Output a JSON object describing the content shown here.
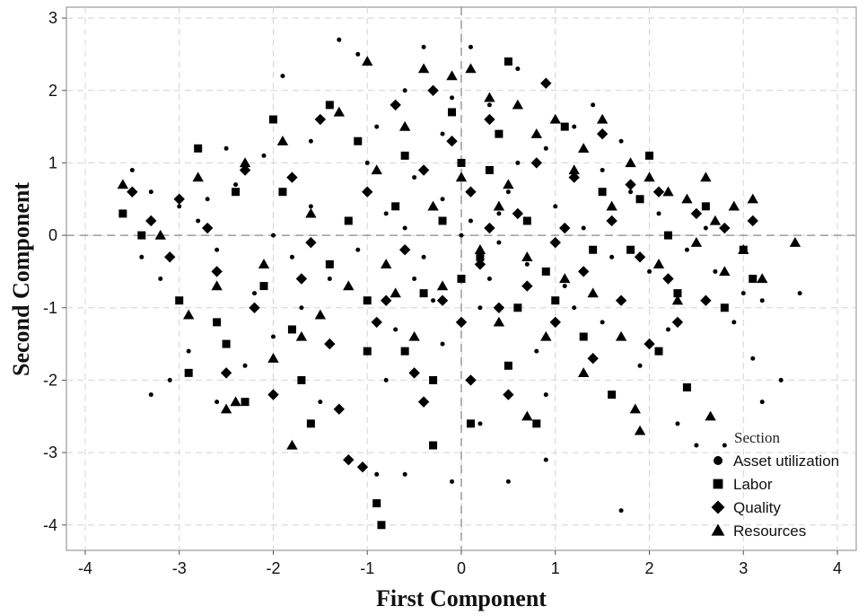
{
  "chart_data": {
    "type": "scatter",
    "title": "",
    "xlabel": "First Component",
    "ylabel": "Second Component",
    "xlim": [
      -4.2,
      4.2
    ],
    "ylim": [
      -4.35,
      3.15
    ],
    "xticks": [
      -4,
      -3,
      -2,
      -1,
      0,
      1,
      2,
      3,
      4
    ],
    "yticks": [
      -4,
      -3,
      -2,
      -1,
      0,
      1,
      2,
      3
    ],
    "grid": true,
    "reference_lines": {
      "x": 0,
      "y": 0
    },
    "legend": {
      "title": "Section",
      "position": "bottom-right",
      "entries": [
        {
          "label": "Asset utilization",
          "marker": "circle"
        },
        {
          "label": "Labor",
          "marker": "square"
        },
        {
          "label": "Quality",
          "marker": "diamond"
        },
        {
          "label": "Resources",
          "marker": "triangle"
        }
      ]
    },
    "series": [
      {
        "name": "Asset utilization",
        "marker": "circle",
        "points": [
          [
            -3.5,
            0.9
          ],
          [
            -3.3,
            0.6
          ],
          [
            -3.0,
            0.4
          ],
          [
            -2.8,
            0.2
          ],
          [
            -3.2,
            -0.6
          ],
          [
            -2.6,
            -0.2
          ],
          [
            -2.4,
            0.7
          ],
          [
            -2.1,
            1.1
          ],
          [
            -1.9,
            2.2
          ],
          [
            -1.6,
            1.3
          ],
          [
            -1.3,
            2.7
          ],
          [
            -1.1,
            2.5
          ],
          [
            -0.9,
            1.5
          ],
          [
            -0.6,
            2.0
          ],
          [
            -0.4,
            2.6
          ],
          [
            -0.2,
            1.4
          ],
          [
            0.1,
            2.6
          ],
          [
            0.3,
            1.8
          ],
          [
            0.6,
            2.3
          ],
          [
            0.9,
            1.2
          ],
          [
            1.2,
            1.5
          ],
          [
            1.5,
            0.9
          ],
          [
            1.8,
            0.6
          ],
          [
            2.1,
            0.3
          ],
          [
            2.4,
            -0.2
          ],
          [
            2.7,
            -0.5
          ],
          [
            3.0,
            -0.8
          ],
          [
            3.2,
            -0.9
          ],
          [
            3.6,
            -0.8
          ],
          [
            3.4,
            -2.0
          ],
          [
            3.2,
            -2.3
          ],
          [
            2.8,
            -2.9
          ],
          [
            2.3,
            -2.6
          ],
          [
            1.9,
            -1.8
          ],
          [
            1.5,
            -1.2
          ],
          [
            1.1,
            -0.7
          ],
          [
            0.7,
            -0.4
          ],
          [
            0.4,
            -0.1
          ],
          [
            0.1,
            0.2
          ],
          [
            -0.2,
            0.5
          ],
          [
            -0.5,
            0.8
          ],
          [
            -0.8,
            0.3
          ],
          [
            -1.1,
            -0.2
          ],
          [
            -1.4,
            -0.6
          ],
          [
            -1.7,
            -1.0
          ],
          [
            -2.0,
            -1.4
          ],
          [
            -2.3,
            -1.8
          ],
          [
            -2.6,
            -2.3
          ],
          [
            -2.9,
            -1.6
          ],
          [
            -3.1,
            -2.0
          ],
          [
            -3.3,
            -2.2
          ],
          [
            -1.2,
            -3.1
          ],
          [
            -0.9,
            -3.3
          ],
          [
            -0.6,
            -3.3
          ],
          [
            -0.1,
            -3.4
          ],
          [
            0.5,
            -3.4
          ],
          [
            0.9,
            -3.1
          ],
          [
            1.7,
            -3.8
          ],
          [
            2.5,
            -2.9
          ],
          [
            3.1,
            -1.7
          ],
          [
            0.2,
            -1.0
          ],
          [
            -0.3,
            -0.9
          ],
          [
            0.8,
            -1.6
          ],
          [
            -0.7,
            -1.3
          ],
          [
            1.3,
            0.1
          ],
          [
            -1.6,
            0.4
          ],
          [
            0.5,
            0.6
          ],
          [
            -0.4,
            -0.3
          ],
          [
            1.0,
            0.4
          ],
          [
            -2.2,
            -0.8
          ],
          [
            2.0,
            -0.5
          ],
          [
            -1.0,
            1.0
          ],
          [
            0.0,
            0.0
          ],
          [
            0.3,
            -0.6
          ],
          [
            -0.6,
            0.1
          ],
          [
            1.6,
            -0.3
          ],
          [
            2.6,
            0.1
          ],
          [
            -2.7,
            0.5
          ],
          [
            0.6,
            1.0
          ],
          [
            -1.8,
            -0.3
          ],
          [
            1.2,
            -1.0
          ],
          [
            -0.2,
            -1.5
          ],
          [
            0.9,
            -2.2
          ],
          [
            -0.8,
            -2.0
          ],
          [
            0.2,
            -2.6
          ],
          [
            -1.5,
            -2.3
          ],
          [
            2.2,
            -1.3
          ],
          [
            2.9,
            -1.2
          ],
          [
            1.4,
            1.8
          ],
          [
            -0.1,
            1.9
          ],
          [
            -2.5,
            1.2
          ],
          [
            -3.4,
            -0.3
          ],
          [
            -2.0,
            0.0
          ],
          [
            0.4,
            0.3
          ],
          [
            -0.5,
            -0.6
          ],
          [
            1.7,
            1.3
          ]
        ]
      },
      {
        "name": "Labor",
        "marker": "square",
        "points": [
          [
            -3.6,
            0.3
          ],
          [
            -3.4,
            0.0
          ],
          [
            -3.0,
            -0.9
          ],
          [
            -2.9,
            -1.9
          ],
          [
            -2.6,
            -1.2
          ],
          [
            -2.8,
            1.2
          ],
          [
            -2.4,
            0.6
          ],
          [
            -2.3,
            -2.3
          ],
          [
            -2.0,
            1.6
          ],
          [
            -1.8,
            -1.3
          ],
          [
            -1.6,
            -2.6
          ],
          [
            -1.4,
            1.8
          ],
          [
            -1.2,
            0.2
          ],
          [
            -1.0,
            -1.6
          ],
          [
            -0.9,
            -3.7
          ],
          [
            -0.85,
            -4.0
          ],
          [
            -0.6,
            1.1
          ],
          [
            -0.4,
            -0.8
          ],
          [
            -0.3,
            -2.9
          ],
          [
            -0.1,
            1.7
          ],
          [
            0.0,
            -0.6
          ],
          [
            0.1,
            -2.6
          ],
          [
            0.3,
            0.9
          ],
          [
            0.5,
            -1.8
          ],
          [
            0.5,
            2.4
          ],
          [
            0.7,
            0.2
          ],
          [
            0.8,
            -2.6
          ],
          [
            1.0,
            -0.9
          ],
          [
            1.1,
            1.5
          ],
          [
            1.3,
            -1.4
          ],
          [
            1.5,
            0.6
          ],
          [
            1.6,
            -2.2
          ],
          [
            1.8,
            -0.2
          ],
          [
            2.0,
            1.1
          ],
          [
            2.1,
            -1.6
          ],
          [
            2.3,
            -0.8
          ],
          [
            2.4,
            -2.1
          ],
          [
            2.6,
            0.4
          ],
          [
            2.8,
            -1.0
          ],
          [
            3.0,
            -0.2
          ],
          [
            3.1,
            -0.6
          ],
          [
            -0.3,
            -2.0
          ],
          [
            -0.6,
            -1.6
          ],
          [
            -1.4,
            -0.4
          ],
          [
            -2.1,
            -0.7
          ],
          [
            -1.9,
            0.6
          ],
          [
            -1.1,
            1.3
          ],
          [
            0.2,
            -0.3
          ],
          [
            0.9,
            -0.5
          ],
          [
            1.4,
            -0.2
          ],
          [
            -0.7,
            0.4
          ],
          [
            0.4,
            1.4
          ],
          [
            -2.5,
            -1.5
          ],
          [
            -1.7,
            -2.0
          ],
          [
            0.0,
            1.0
          ],
          [
            -0.2,
            0.2
          ],
          [
            0.6,
            -1.0
          ],
          [
            1.9,
            0.5
          ],
          [
            -1.0,
            -0.9
          ],
          [
            2.2,
            0.0
          ]
        ]
      },
      {
        "name": "Quality",
        "marker": "diamond",
        "points": [
          [
            -3.5,
            0.6
          ],
          [
            -3.3,
            0.2
          ],
          [
            -3.1,
            -0.3
          ],
          [
            -3.0,
            0.5
          ],
          [
            -2.7,
            0.1
          ],
          [
            -2.6,
            -0.5
          ],
          [
            -2.5,
            -1.9
          ],
          [
            -2.3,
            0.9
          ],
          [
            -2.2,
            -1.0
          ],
          [
            -2.0,
            -2.2
          ],
          [
            -1.8,
            0.8
          ],
          [
            -1.7,
            -0.6
          ],
          [
            -1.5,
            1.6
          ],
          [
            -1.4,
            -1.5
          ],
          [
            -1.3,
            -2.4
          ],
          [
            -1.2,
            -3.1
          ],
          [
            -1.05,
            -3.2
          ],
          [
            -1.0,
            0.6
          ],
          [
            -0.8,
            -0.9
          ],
          [
            -0.7,
            1.8
          ],
          [
            -0.6,
            -0.2
          ],
          [
            -0.5,
            -1.9
          ],
          [
            -0.4,
            0.9
          ],
          [
            -0.3,
            2.0
          ],
          [
            -0.2,
            -0.9
          ],
          [
            -0.1,
            1.3
          ],
          [
            0.0,
            -1.2
          ],
          [
            0.1,
            0.6
          ],
          [
            0.2,
            -0.4
          ],
          [
            0.3,
            1.6
          ],
          [
            0.4,
            -1.0
          ],
          [
            0.5,
            -2.2
          ],
          [
            0.6,
            0.3
          ],
          [
            0.7,
            -0.7
          ],
          [
            0.8,
            1.0
          ],
          [
            0.9,
            2.1
          ],
          [
            1.0,
            -1.2
          ],
          [
            1.1,
            0.1
          ],
          [
            1.2,
            0.8
          ],
          [
            1.3,
            -0.5
          ],
          [
            1.4,
            -1.7
          ],
          [
            1.5,
            1.4
          ],
          [
            1.6,
            0.2
          ],
          [
            1.7,
            -0.9
          ],
          [
            1.8,
            0.7
          ],
          [
            1.9,
            -0.3
          ],
          [
            2.0,
            -1.5
          ],
          [
            2.1,
            0.6
          ],
          [
            2.2,
            -0.6
          ],
          [
            2.3,
            -1.2
          ],
          [
            2.5,
            0.3
          ],
          [
            2.6,
            -0.9
          ],
          [
            2.8,
            0.1
          ],
          [
            3.1,
            0.2
          ],
          [
            -0.4,
            -2.3
          ],
          [
            0.1,
            -2.0
          ],
          [
            -0.9,
            -1.2
          ],
          [
            -1.6,
            -0.1
          ],
          [
            0.3,
            0.1
          ],
          [
            1.0,
            -0.1
          ]
        ]
      },
      {
        "name": "Resources",
        "marker": "triangle",
        "points": [
          [
            -3.6,
            0.7
          ],
          [
            -3.2,
            0.0
          ],
          [
            -2.9,
            -1.1
          ],
          [
            -2.8,
            0.8
          ],
          [
            -2.6,
            -0.7
          ],
          [
            -2.5,
            -2.4
          ],
          [
            -2.3,
            1.0
          ],
          [
            -2.1,
            -0.4
          ],
          [
            -2.0,
            -1.7
          ],
          [
            -1.9,
            1.3
          ],
          [
            -1.8,
            -2.9
          ],
          [
            -1.6,
            0.3
          ],
          [
            -1.5,
            -1.1
          ],
          [
            -1.3,
            1.7
          ],
          [
            -1.2,
            -0.7
          ],
          [
            -1.0,
            2.4
          ],
          [
            -0.9,
            0.9
          ],
          [
            -0.8,
            -0.4
          ],
          [
            -0.6,
            1.5
          ],
          [
            -0.5,
            -1.4
          ],
          [
            -0.4,
            2.3
          ],
          [
            -0.3,
            0.4
          ],
          [
            -0.2,
            -0.7
          ],
          [
            -0.1,
            2.2
          ],
          [
            0.0,
            0.8
          ],
          [
            0.1,
            2.3
          ],
          [
            0.2,
            -0.2
          ],
          [
            0.3,
            1.9
          ],
          [
            0.4,
            -1.2
          ],
          [
            0.5,
            0.7
          ],
          [
            0.6,
            1.8
          ],
          [
            0.7,
            -0.3
          ],
          [
            0.8,
            1.4
          ],
          [
            0.9,
            -1.4
          ],
          [
            1.0,
            1.6
          ],
          [
            1.1,
            -0.6
          ],
          [
            1.2,
            0.9
          ],
          [
            1.3,
            1.2
          ],
          [
            1.4,
            -0.8
          ],
          [
            1.5,
            1.6
          ],
          [
            1.6,
            0.4
          ],
          [
            1.7,
            -1.4
          ],
          [
            1.8,
            1.0
          ],
          [
            1.85,
            -2.4
          ],
          [
            1.9,
            -2.7
          ],
          [
            2.0,
            0.8
          ],
          [
            2.1,
            -0.4
          ],
          [
            2.2,
            0.6
          ],
          [
            2.3,
            -0.9
          ],
          [
            2.4,
            0.5
          ],
          [
            2.5,
            -0.1
          ],
          [
            2.6,
            0.8
          ],
          [
            2.65,
            -2.5
          ],
          [
            2.7,
            0.2
          ],
          [
            2.8,
            -0.5
          ],
          [
            2.9,
            0.4
          ],
          [
            3.0,
            -0.2
          ],
          [
            3.1,
            0.5
          ],
          [
            3.2,
            -0.6
          ],
          [
            3.55,
            -0.1
          ],
          [
            -2.4,
            -2.3
          ],
          [
            -1.7,
            -1.4
          ],
          [
            0.7,
            -2.5
          ],
          [
            1.3,
            -1.9
          ],
          [
            -0.7,
            -0.8
          ],
          [
            0.4,
            0.4
          ]
        ]
      }
    ]
  }
}
